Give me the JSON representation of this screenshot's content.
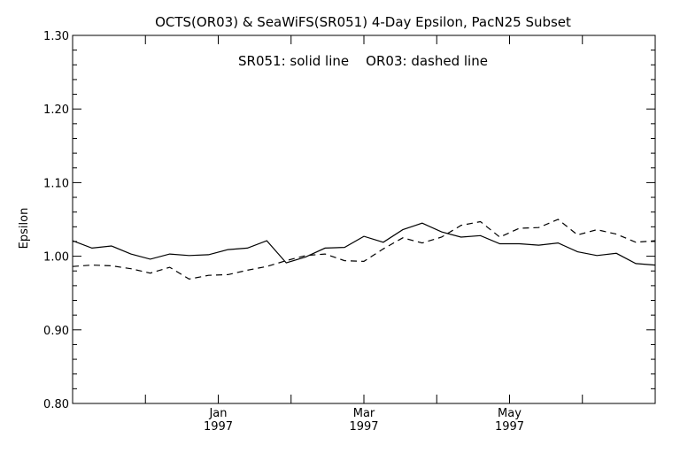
{
  "chart_data": {
    "type": "line",
    "title": "OCTS(OR03) & SeaWiFS(SR051) 4-Day Epsilon, PacN25 Subset",
    "annotation": "SR051: solid line    OR03: dashed line",
    "xlabel": "",
    "ylabel": "Epsilon",
    "ylim": [
      0.8,
      1.3
    ],
    "yticks": [
      "0.80",
      "0.90",
      "1.00",
      "1.10",
      "1.20",
      "1.30"
    ],
    "xticks": [
      {
        "month": "Jan",
        "year": "1997"
      },
      {
        "month": "Mar",
        "year": "1997"
      },
      {
        "month": "May",
        "year": "1997"
      }
    ],
    "grid": false,
    "series": [
      {
        "name": "SR051",
        "style": "solid",
        "color": "#000000",
        "values": [
          1.021,
          1.011,
          1.014,
          1.003,
          0.996,
          1.003,
          1.001,
          1.002,
          1.009,
          1.011,
          1.021,
          0.991,
          0.999,
          1.011,
          1.012,
          1.027,
          1.019,
          1.036,
          1.045,
          1.033,
          1.026,
          1.028,
          1.017,
          1.017,
          1.015,
          1.018,
          1.006,
          1.001,
          1.004,
          0.99,
          0.988
        ]
      },
      {
        "name": "OR03",
        "style": "dashed",
        "color": "#000000",
        "values": [
          0.986,
          0.988,
          0.987,
          0.983,
          0.977,
          0.985,
          0.969,
          0.974,
          0.975,
          0.981,
          0.986,
          0.994,
          1.001,
          1.003,
          0.994,
          0.993,
          1.01,
          1.025,
          1.018,
          1.026,
          1.042,
          1.047,
          1.026,
          1.038,
          1.039,
          1.05,
          1.029,
          1.036,
          1.03,
          1.019,
          1.021
        ]
      }
    ]
  }
}
